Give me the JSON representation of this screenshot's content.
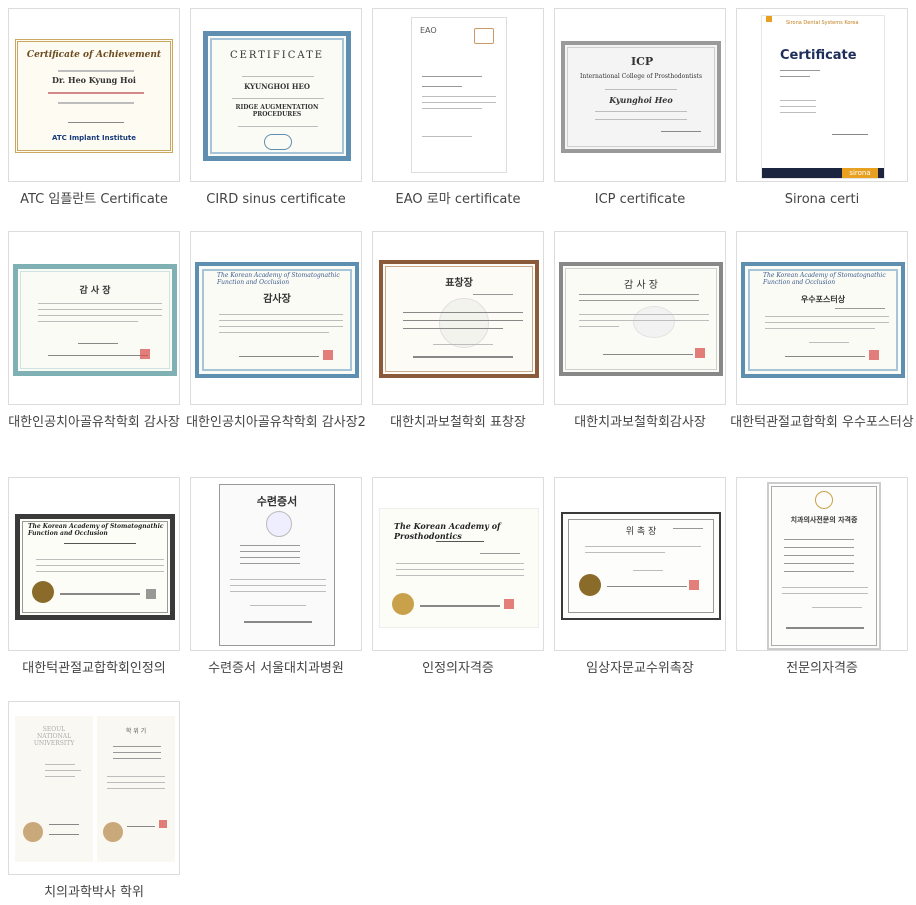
{
  "items": [
    {
      "caption": "ATC 임플란트 Certificate",
      "art_title": "Certificate of Achievement",
      "style": "gold"
    },
    {
      "caption": "CIRD sinus certificate",
      "art_title": "CERTIFICATE",
      "style": "blue"
    },
    {
      "caption": "EAO 로마 certificate",
      "art_title": "EAO",
      "style": "plain"
    },
    {
      "caption": "ICP certificate",
      "art_title": "ICP",
      "style": "gray"
    },
    {
      "caption": "Sirona certi",
      "art_title": "Certificate",
      "style": "sirona"
    },
    {
      "caption": "대한인공치아골유착학회 감사장",
      "art_title": "감 사 장",
      "style": "teal"
    },
    {
      "caption": "대한인공치아골유착학회 감사장2",
      "art_title": "감사장",
      "style": "blue"
    },
    {
      "caption": "대한치과보철학회 표창장",
      "art_title": "표창장",
      "style": "brown"
    },
    {
      "caption": "대한치과보철학회감사장",
      "art_title": "감 사 장",
      "style": "gray"
    },
    {
      "caption": "대한턱관절교합학회 우수포스터상",
      "art_title": "우수포스터상",
      "style": "blue"
    },
    {
      "caption": "대한턱관절교합학회인정의",
      "art_title": "",
      "style": "dark"
    },
    {
      "caption": "수련증서 서울대치과병원",
      "art_title": "수련증서",
      "style": "plain"
    },
    {
      "caption": "인정의자격증",
      "art_title": "",
      "style": "plain"
    },
    {
      "caption": "임상자문교수위촉장",
      "art_title": "위 촉 장",
      "style": "dark"
    },
    {
      "caption": "전문의자격증",
      "art_title": "치과의사전문의 자격증",
      "style": "plain"
    },
    {
      "caption": "치의과학박사 학위",
      "art_title": "",
      "style": "plain"
    }
  ]
}
